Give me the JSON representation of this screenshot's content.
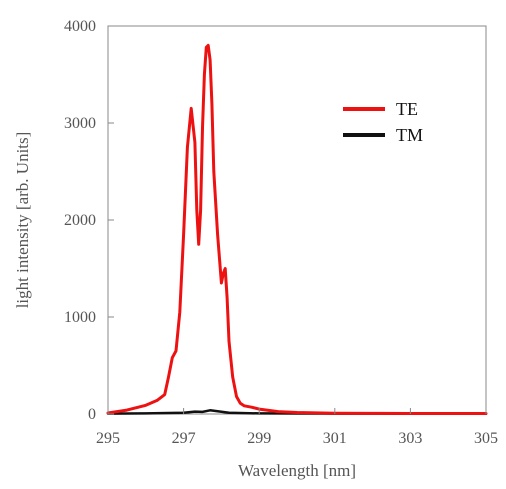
{
  "chart_data": {
    "type": "line",
    "title": "",
    "xlabel": "Wavelength [nm]",
    "ylabel": "light intensity [arb. Units]",
    "xlim": [
      295,
      305
    ],
    "ylim": [
      0,
      4000
    ],
    "xticks": [
      295,
      297,
      299,
      301,
      303,
      305
    ],
    "yticks": [
      0,
      1000,
      2000,
      3000,
      4000
    ],
    "grid": false,
    "legend_position": "top-right",
    "series": [
      {
        "name": "TE",
        "color": "#ee1111",
        "x": [
          295.0,
          295.5,
          296.0,
          296.3,
          296.5,
          296.6,
          296.7,
          296.8,
          296.9,
          297.0,
          297.1,
          297.2,
          297.3,
          297.35,
          297.4,
          297.45,
          297.5,
          297.55,
          297.6,
          297.65,
          297.7,
          297.75,
          297.8,
          297.9,
          298.0,
          298.05,
          298.1,
          298.15,
          298.2,
          298.3,
          298.4,
          298.5,
          298.6,
          298.8,
          299.0,
          299.5,
          300.0,
          301.0,
          302.0,
          303.0,
          304.0,
          305.0
        ],
        "y": [
          10,
          40,
          90,
          140,
          200,
          380,
          580,
          650,
          1050,
          1850,
          2750,
          3150,
          2800,
          2100,
          1750,
          2100,
          2950,
          3500,
          3780,
          3800,
          3650,
          3200,
          2500,
          1850,
          1350,
          1450,
          1500,
          1200,
          750,
          380,
          180,
          110,
          85,
          70,
          50,
          25,
          15,
          8,
          6,
          5,
          5,
          5
        ]
      },
      {
        "name": "TM",
        "color": "#111111",
        "x": [
          295.0,
          296.0,
          297.0,
          297.3,
          297.5,
          297.7,
          297.9,
          298.2,
          299.0,
          301.0,
          303.0,
          305.0
        ],
        "y": [
          4,
          6,
          12,
          25,
          22,
          38,
          28,
          12,
          6,
          4,
          3,
          3
        ]
      }
    ]
  }
}
